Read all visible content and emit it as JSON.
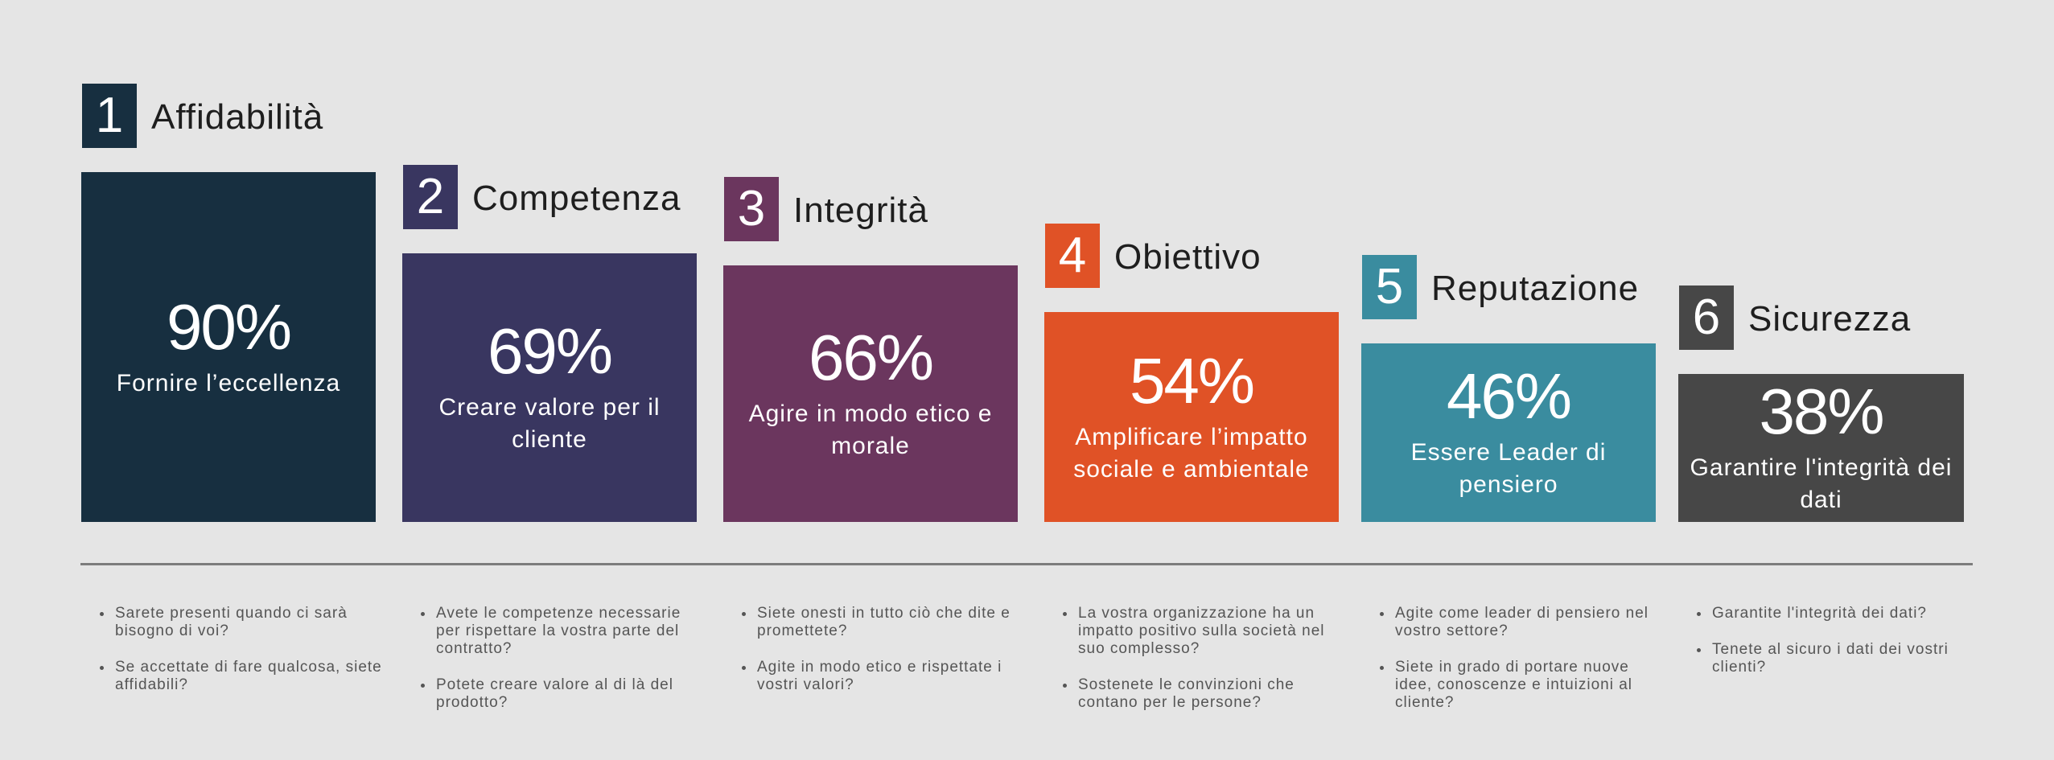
{
  "chart_data": {
    "type": "bar",
    "title": "",
    "categories": [
      "Affidabilità",
      "Competenza",
      "Integrità",
      "Obiettivo",
      "Reputazione",
      "Sicurezza"
    ],
    "values": [
      90,
      69,
      66,
      54,
      46,
      38
    ],
    "unit": "%",
    "ylim": [
      0,
      100
    ],
    "grid": false,
    "legend": "none",
    "items": [
      {
        "rank": "1",
        "title": "Affidabilità",
        "value": 90,
        "label": "90%",
        "caption": "Fornire l’eccellenza",
        "color": "#172f40",
        "bullets": [
          "Sarete presenti quando ci sarà bisogno di voi?",
          "Se accettate di fare qualcosa, siete affidabili?"
        ]
      },
      {
        "rank": "2",
        "title": "Competenza",
        "value": 69,
        "label": "69%",
        "caption": "Creare valore per il cliente",
        "color": "#393660",
        "bullets": [
          "Avete le competenze necessarie per rispettare la vostra parte del contratto?",
          "Potete creare valore al di là del prodotto?"
        ]
      },
      {
        "rank": "3",
        "title": "Integrità",
        "value": 66,
        "label": "66%",
        "caption": "Agire in modo etico e morale",
        "color": "#6b365e",
        "bullets": [
          "Siete onesti in tutto ciò che dite e promettete?",
          "Agite in modo etico e rispettate i vostri valori?"
        ]
      },
      {
        "rank": "4",
        "title": "Obiettivo",
        "value": 54,
        "label": "54%",
        "caption": "Amplificare l’impatto sociale e ambientale",
        "color": "#e05226",
        "bullets": [
          "La vostra organizzazione ha un impatto positivo sulla società nel suo complesso?",
          "Sostenete le convinzioni che contano per le persone?"
        ]
      },
      {
        "rank": "5",
        "title": "Reputazione",
        "value": 46,
        "label": "46%",
        "caption": "Essere Leader di pensiero",
        "color": "#3a8c9f",
        "bullets": [
          "Agite come leader di pensiero nel vostro settore?",
          "Siete in grado di portare nuove idee, conoscenze e intuizioni al cliente?"
        ]
      },
      {
        "rank": "6",
        "title": "Sicurezza",
        "value": 38,
        "label": "38%",
        "caption": "Garantire l'integrità dei dati",
        "color": "#474747",
        "bullets": [
          "Garantite l'integrità dei dati?",
          "Tenete al sicuro i dati dei vostri clienti?"
        ]
      }
    ]
  }
}
